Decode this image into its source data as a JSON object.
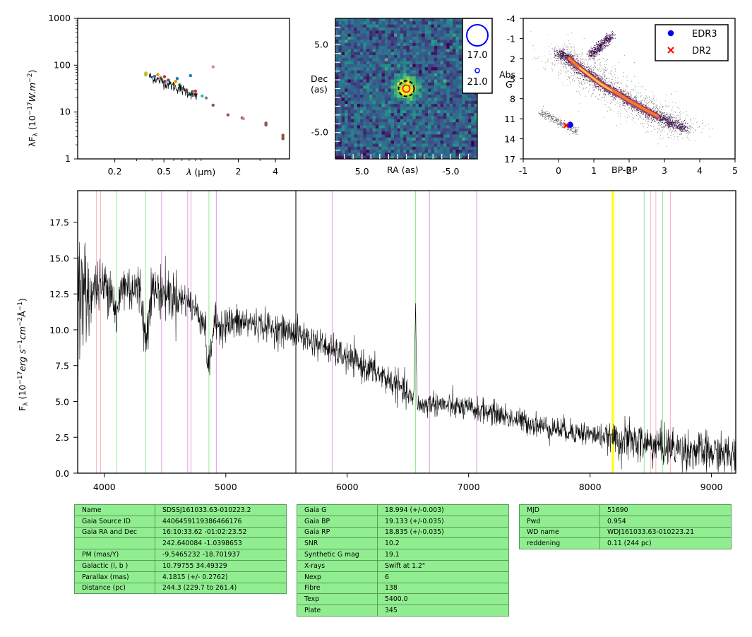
{
  "chart_data": [
    {
      "type": "scatter",
      "panel": "sed",
      "ylabel_tex": "λF",
      "ylabel_sub": "λ",
      "ylabel_unit": " (10",
      "ylabel_exp": "−17",
      "ylabel_tail": "W.m",
      "ylabel_exp2": "−2",
      "ylabel_close": ")",
      "xlabel_sym": "λ",
      "xlabel_unit": " (μm)",
      "x_scale": "log",
      "y_scale": "log",
      "xlim": [
        0.1,
        5.2
      ],
      "ylim": [
        1,
        1000
      ],
      "x_ticks": [
        {
          "v": 0.2,
          "label": "0.2"
        },
        {
          "v": 0.5,
          "label": "0.5"
        },
        {
          "v": 2,
          "label": "2"
        },
        {
          "v": 4,
          "label": "4"
        }
      ],
      "y_ticks": [
        {
          "v": 1,
          "label": "1"
        },
        {
          "v": 10,
          "label": "10"
        },
        {
          "v": 100,
          "label": "100"
        },
        {
          "v": 1000,
          "label": "1000"
        }
      ],
      "points": [
        {
          "x": 0.355,
          "y": 62,
          "c": "#bcbd22"
        },
        {
          "x": 0.356,
          "y": 68,
          "c": "#bcbd22"
        },
        {
          "x": 0.358,
          "y": 65,
          "c": "#bcbd22"
        },
        {
          "x": 0.42,
          "y": 58,
          "c": "#1f77b4"
        },
        {
          "x": 0.445,
          "y": 63,
          "c": "#ff7f0e"
        },
        {
          "x": 0.47,
          "y": 55,
          "c": "#e377c2"
        },
        {
          "x": 0.48,
          "y": 50,
          "c": "#2ca02c"
        },
        {
          "x": 0.505,
          "y": 57,
          "c": "#d62728"
        },
        {
          "x": 0.51,
          "y": 45,
          "c": "#9467bd"
        },
        {
          "x": 0.54,
          "y": 48,
          "c": "#8c564b"
        },
        {
          "x": 0.56,
          "y": 42,
          "c": "#17becf"
        },
        {
          "x": 0.6,
          "y": 40,
          "c": "#bcbd22"
        },
        {
          "x": 0.622,
          "y": 45,
          "c": "#ff7f0e"
        },
        {
          "x": 0.64,
          "y": 52,
          "c": "#1f77b4"
        },
        {
          "x": 0.67,
          "y": 38,
          "c": "#2ca02c"
        },
        {
          "x": 0.673,
          "y": 34,
          "c": "#2ca02c"
        },
        {
          "x": 0.7,
          "y": 32,
          "c": "#9467bd"
        },
        {
          "x": 0.76,
          "y": 30,
          "c": "#e377c2"
        },
        {
          "x": 0.77,
          "y": 27,
          "c": "#bcbd22"
        },
        {
          "x": 0.8,
          "y": 25,
          "c": "#17becf"
        },
        {
          "x": 0.82,
          "y": 60,
          "c": "#1f77b4"
        },
        {
          "x": 0.9,
          "y": 28,
          "c": "#d62728"
        },
        {
          "x": 0.91,
          "y": 24,
          "c": "#8c564b"
        },
        {
          "x": 1.02,
          "y": 22,
          "c": "#17becf"
        },
        {
          "x": 1.1,
          "y": 20,
          "c": "#7f7f7f"
        },
        {
          "x": 1.25,
          "y": 92,
          "c": "#e377c2"
        },
        {
          "x": 1.25,
          "y": 14,
          "c": "#8c564b"
        },
        {
          "x": 1.65,
          "y": 8.7,
          "c": "#8c564b"
        },
        {
          "x": 2.15,
          "y": 7.5,
          "c": "#8c564b"
        },
        {
          "x": 2.2,
          "y": 7.2,
          "c": "#e377c2"
        },
        {
          "x": 3.35,
          "y": 5.8,
          "c": "#8c564b"
        },
        {
          "x": 3.35,
          "y": 5.3,
          "c": "#8c564b"
        },
        {
          "x": 4.6,
          "y": 3.2,
          "c": "#8c564b"
        },
        {
          "x": 4.6,
          "y": 2.9,
          "c": "#8c564b"
        },
        {
          "x": 4.6,
          "y": 2.7,
          "c": "#8c564b"
        }
      ],
      "spectrum_line": {
        "x_start": 0.38,
        "x_end": 0.92,
        "y_start": 58,
        "y_end": 22,
        "color": "#000000"
      }
    },
    {
      "type": "heatmap",
      "panel": "image",
      "xlabel": "RA (as)",
      "ylabel_line1": "Dec",
      "ylabel_line2": "(as)",
      "x_ticks": [
        {
          "v": 5.0,
          "label": "5.0"
        },
        {
          "v": -5.0,
          "label": "-5.0"
        }
      ],
      "y_ticks": [
        {
          "v": 5.0,
          "label": "5.0"
        },
        {
          "v": -5.0,
          "label": "-5.0"
        }
      ],
      "xlim": [
        8,
        -8
      ],
      "ylim": [
        -8,
        8
      ],
      "source": {
        "x": 0.0,
        "y": 0.0
      },
      "legend": [
        {
          "label": "17.0",
          "size": "large"
        },
        {
          "label": "21.0",
          "size": "small"
        }
      ],
      "colors": {
        "low": "#440154",
        "mid": "#21918c",
        "high": "#fde725"
      }
    },
    {
      "type": "scatter",
      "panel": "hr-diagram",
      "xlabel": "BP-RP",
      "ylabel_line1": "Abs",
      "ylabel_line2": "G",
      "xlim": [
        -1,
        5
      ],
      "ylim": [
        17,
        -4
      ],
      "x_ticks": [
        {
          "v": -1,
          "label": "-1"
        },
        {
          "v": 0,
          "label": "0"
        },
        {
          "v": 1,
          "label": "1"
        },
        {
          "v": 2,
          "label": "2"
        },
        {
          "v": 3,
          "label": "3"
        },
        {
          "v": 4,
          "label": "4"
        },
        {
          "v": 5,
          "label": "5"
        }
      ],
      "y_ticks": [
        {
          "v": -4,
          "label": "-4"
        },
        {
          "v": -1,
          "label": "-1"
        },
        {
          "v": 2,
          "label": "2"
        },
        {
          "v": 5,
          "label": "5"
        },
        {
          "v": 8,
          "label": "8"
        },
        {
          "v": 11,
          "label": "11"
        },
        {
          "v": 14,
          "label": "14"
        },
        {
          "v": 17,
          "label": "17"
        }
      ],
      "series": [
        {
          "name": "EDR3",
          "x": 0.33,
          "y": 11.9,
          "color": "#0000ff",
          "marker": "circle"
        },
        {
          "name": "DR2",
          "x": 0.22,
          "y": 12.0,
          "color": "#ff0000",
          "marker": "x"
        }
      ],
      "legend_position": "top-right"
    },
    {
      "type": "line",
      "panel": "spectrum",
      "ylabel_main": "F",
      "ylabel_sub": "λ",
      "ylabel_unit": " (10",
      "ylabel_exp": "−17",
      "ylabel_erg": "erg s",
      "ylabel_exp_s": "−1",
      "ylabel_cm": "cm",
      "ylabel_exp_cm": "−2",
      "ylabel_ang": "Å",
      "ylabel_exp_a": "−1",
      "ylabel_close": ")",
      "xlim": [
        3780,
        9200
      ],
      "ylim": [
        0,
        19.7
      ],
      "x_ticks": [
        {
          "v": 4000,
          "label": "4000"
        },
        {
          "v": 5000,
          "label": "5000"
        },
        {
          "v": 6000,
          "label": "6000"
        },
        {
          "v": 7000,
          "label": "7000"
        },
        {
          "v": 8000,
          "label": "8000"
        },
        {
          "v": 9000,
          "label": "9000"
        }
      ],
      "y_ticks": [
        {
          "v": 0.0,
          "label": "0.0"
        },
        {
          "v": 2.5,
          "label": "2.5"
        },
        {
          "v": 5.0,
          "label": "5.0"
        },
        {
          "v": 7.5,
          "label": "7.5"
        },
        {
          "v": 10.0,
          "label": "10.0"
        },
        {
          "v": 12.5,
          "label": "12.5"
        },
        {
          "v": 15.0,
          "label": "15.0"
        },
        {
          "v": 17.5,
          "label": "17.5"
        }
      ],
      "continuum": [
        [
          3800,
          12.2
        ],
        [
          3950,
          13.0
        ],
        [
          4100,
          13.2
        ],
        [
          4300,
          12.8
        ],
        [
          4500,
          12.6
        ],
        [
          4700,
          11.9
        ],
        [
          4850,
          10.4
        ],
        [
          5000,
          10.4
        ],
        [
          5200,
          10.5
        ],
        [
          5400,
          10.1
        ],
        [
          5600,
          9.7
        ],
        [
          5800,
          8.9
        ],
        [
          6000,
          8.0
        ],
        [
          6200,
          7.2
        ],
        [
          6400,
          6.2
        ],
        [
          6520,
          5.3
        ],
        [
          6560,
          4.8
        ],
        [
          6620,
          4.7
        ],
        [
          6700,
          4.9
        ],
        [
          6900,
          4.6
        ],
        [
          7000,
          4.5
        ],
        [
          7200,
          4.2
        ],
        [
          7400,
          3.7
        ],
        [
          7600,
          3.3
        ],
        [
          7800,
          3.0
        ],
        [
          8000,
          2.7
        ],
        [
          8200,
          2.4
        ],
        [
          8400,
          2.1
        ],
        [
          8600,
          1.9
        ],
        [
          8800,
          1.6
        ],
        [
          9000,
          1.4
        ],
        [
          9200,
          1.2
        ]
      ],
      "dips": [
        {
          "x": 4340,
          "depth": 3.5
        },
        {
          "x": 4860,
          "depth": 3.0
        },
        {
          "x": 4100,
          "depth": 2.5
        }
      ],
      "peaks": [
        {
          "x": 6562,
          "height": 11.5
        }
      ],
      "reference_lines": [
        {
          "x": 3934,
          "color": "#ffb6c1"
        },
        {
          "x": 3969,
          "color": "#ffb6c1"
        },
        {
          "x": 4102,
          "color": "#90ee90"
        },
        {
          "x": 4340,
          "color": "#90ee90"
        },
        {
          "x": 4471,
          "color": "#dda0dd"
        },
        {
          "x": 4686,
          "color": "#dda0dd"
        },
        {
          "x": 4713,
          "color": "#dda0dd"
        },
        {
          "x": 4861,
          "color": "#90ee90"
        },
        {
          "x": 4922,
          "color": "#dda0dd"
        },
        {
          "x": 5577,
          "color": "#000000"
        },
        {
          "x": 5876,
          "color": "#dda0dd"
        },
        {
          "x": 6563,
          "color": "#90ee90"
        },
        {
          "x": 6678,
          "color": "#dda0dd"
        },
        {
          "x": 7065,
          "color": "#dda0dd"
        },
        {
          "x": 8183,
          "color": "#ffff00"
        },
        {
          "x": 8195,
          "color": "#ffff00"
        },
        {
          "x": 8446,
          "color": "#90ee90"
        },
        {
          "x": 8498,
          "color": "#ffb6c1"
        },
        {
          "x": 8542,
          "color": "#ffb6c1"
        },
        {
          "x": 8598,
          "color": "#90ee90"
        },
        {
          "x": 8662,
          "color": "#ffb6c1"
        }
      ]
    }
  ],
  "tables": [
    {
      "rows": [
        [
          "Name",
          "SDSSJ161033.63-010223.2"
        ],
        [
          "Gaia Source ID",
          "4406459119386466176"
        ],
        [
          "Gaia RA and Dec",
          "16:10:33.62    -01:02:23.52"
        ],
        [
          "",
          "242.640084    -1.0398653"
        ],
        [
          "PM (mas/Y)",
          "-9.5465232    -18.701937"
        ],
        [
          "Galactic (l, b )",
          "10.79755    34.49329"
        ],
        [
          "Parallax (mas)",
          "4.1815 (+/- 0.2762)"
        ],
        [
          "Distance (pc)",
          "244.3 (229.7 to 261.4)"
        ]
      ]
    },
    {
      "rows": [
        [
          "Gaia G",
          "18.994 (+/-0.003)"
        ],
        [
          "Gaia BP",
          "19.133 (+/-0.035)"
        ],
        [
          "Gaia RP",
          "18.835 (+/-0.035)"
        ],
        [
          "SNR",
          "10.2"
        ],
        [
          "Synthetic G mag",
          "19.1"
        ],
        [
          "X-rays",
          "Swift at 1.2\""
        ],
        [
          "Nexp",
          "6"
        ],
        [
          "Fibre",
          "138"
        ],
        [
          "Texp",
          "5400.0"
        ],
        [
          "Plate",
          "345"
        ]
      ]
    },
    {
      "rows": [
        [
          "MJD",
          "51690"
        ],
        [
          "Pwd",
          "0.954"
        ],
        [
          "WD name",
          "WDJ161033.63-010223.21"
        ],
        [
          "reddening",
          "0.11 (244 pc)"
        ]
      ]
    }
  ]
}
